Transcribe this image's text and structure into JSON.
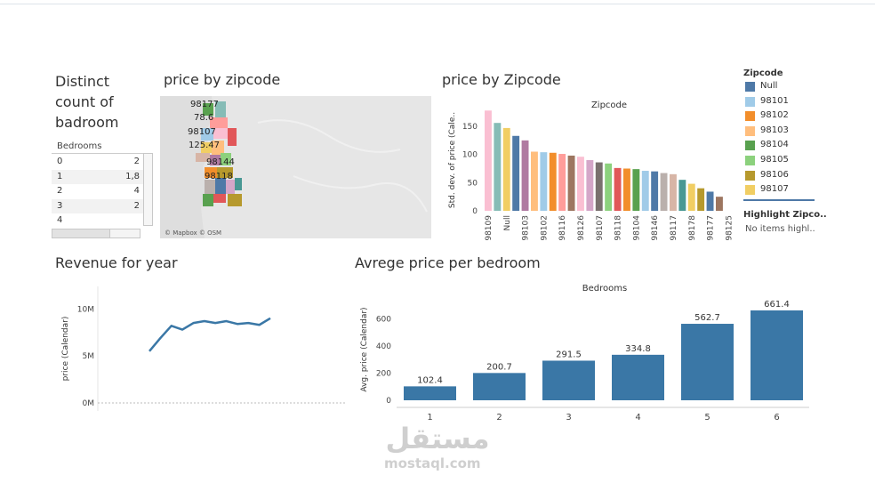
{
  "titles": {
    "distinct_line1": "Distinct",
    "distinct_line2": "count of",
    "distinct_line3": "badroom",
    "map": "price by zipcode",
    "zip_bar": "price by Zipcode",
    "revenue": "Revenue for year",
    "bedroom_bar": "Avrege price per bedroom"
  },
  "bedroom_table": {
    "header": "Bedrooms",
    "rows": [
      {
        "k": "0",
        "v": "2"
      },
      {
        "k": "1",
        "v": "1,8"
      },
      {
        "k": "2",
        "v": "4"
      },
      {
        "k": "3",
        "v": "2"
      },
      {
        "k": "4",
        "v": ""
      }
    ]
  },
  "map": {
    "labels": [
      "98177",
      "78.6",
      "98107",
      "125.47",
      "98144",
      "98118"
    ],
    "attribution": "© Mapbox © OSM"
  },
  "legend": {
    "title": "Zipcode",
    "items": [
      {
        "name": "Null",
        "color": "#4e79a7"
      },
      {
        "name": "98101",
        "color": "#a0cbe8"
      },
      {
        "name": "98102",
        "color": "#f28e2b"
      },
      {
        "name": "98103",
        "color": "#ffbe7d"
      },
      {
        "name": "98104",
        "color": "#59a14f"
      },
      {
        "name": "98105",
        "color": "#8cd17d"
      },
      {
        "name": "98106",
        "color": "#b6992d"
      },
      {
        "name": "98107",
        "color": "#f1ce63"
      }
    ],
    "highlight_title": "Highlight Zipco..",
    "highlight_text": "No items highl.."
  },
  "chart_data": [
    {
      "type": "bar",
      "title": "price by Zipcode",
      "header": "Zipcode",
      "ylabel": "Std. dev. of price (Cale..",
      "ylim": [
        0,
        180
      ],
      "yticks": [
        0,
        50,
        100,
        150
      ],
      "tick_labels": [
        "98109",
        "Null",
        "98103",
        "98102",
        "98116",
        "98126",
        "98107",
        "98118",
        "98104",
        "98146",
        "98117",
        "98178",
        "98177",
        "98125"
      ],
      "values": [
        178,
        156,
        147,
        133,
        125,
        105,
        104,
        103,
        101,
        98,
        96,
        90,
        86,
        84,
        76,
        75,
        74,
        71,
        70,
        67,
        65,
        55,
        48,
        40,
        34,
        25
      ],
      "colors": [
        "#fabfd2",
        "#86bcb6",
        "#f1ce63",
        "#4e79a7",
        "#b07aa1",
        "#ffbe7d",
        "#a0cbe8",
        "#f28e2b",
        "#ff9d9a",
        "#9d7660",
        "#fabfd2",
        "#d4a6c8",
        "#79706e",
        "#8cd17d",
        "#e15759",
        "#f28e2b",
        "#59a14f",
        "#a0cbe8",
        "#4e79a7",
        "#bab0ac",
        "#d7b5a6",
        "#499894",
        "#f1ce63",
        "#b6992d",
        "#4e79a7",
        "#9d7660"
      ]
    },
    {
      "type": "line",
      "title": "Revenue for year",
      "ylabel": "price (Calendar)",
      "yticks": [
        "0M",
        "5M",
        "10M"
      ],
      "ylim": [
        0,
        10500000
      ],
      "values": [
        5500000,
        6900000,
        8200000,
        7800000,
        8500000,
        8700000,
        8500000,
        8700000,
        8400000,
        8500000,
        8300000,
        9000000
      ]
    },
    {
      "type": "bar",
      "title": "Avrege price per bedroom",
      "header": "Bedrooms",
      "ylabel": "Avg. price (Calendar)",
      "ylim": [
        0,
        720
      ],
      "yticks": [
        0,
        200,
        400,
        600
      ],
      "categories": [
        "1",
        "2",
        "3",
        "4",
        "5",
        "6"
      ],
      "values": [
        102.4,
        200.7,
        291.5,
        334.8,
        562.7,
        661.4
      ],
      "labels": [
        "102.4",
        "200.7",
        "291.5",
        "334.8",
        "562.7",
        "661.4"
      ],
      "color": "#3a77a6"
    }
  ],
  "watermark": {
    "arabic": "مستقل",
    "latin": "mostaql.com"
  }
}
